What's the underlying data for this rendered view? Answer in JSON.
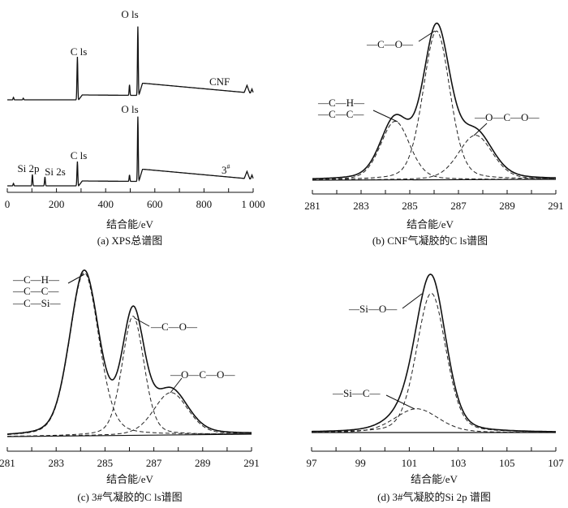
{
  "chart_data": [
    {
      "id": "a",
      "type": "line",
      "caption": "(a) XPS总谱图",
      "xlabel": "结合能/eV",
      "ylabel": "",
      "xlim": [
        0,
        1000
      ],
      "xticks": [
        0,
        200,
        400,
        600,
        800,
        1000
      ],
      "xtick_labels": [
        "0",
        "200",
        "400",
        "600",
        "800",
        "1 000"
      ],
      "series": [
        {
          "name": "CNF",
          "peaks": [
            {
              "label": "",
              "position": 25,
              "height": 3
            },
            {
              "label": "",
              "position": 65,
              "height": 2
            },
            {
              "label": "C ls",
              "position": 285,
              "height": 53
            },
            {
              "label": "",
              "position": 497,
              "height": 13
            },
            {
              "label": "O ls",
              "position": 531,
              "height": 85
            }
          ]
        },
        {
          "name": "3#",
          "peaks": [
            {
              "label": "",
              "position": 25,
              "height": 3
            },
            {
              "label": "Si 2p",
              "position": 102,
              "height": 14
            },
            {
              "label": "Si 2s",
              "position": 153,
              "height": 11
            },
            {
              "label": "C ls",
              "position": 285,
              "height": 30
            },
            {
              "label": "",
              "position": 497,
              "height": 8
            },
            {
              "label": "O ls",
              "position": 531,
              "height": 80
            }
          ]
        }
      ],
      "annotations": {
        "cnf": "CNF",
        "sample3": "3",
        "sample3_sup": "#",
        "o1s_top": "O ls",
        "c1s_top": "C ls",
        "o1s_bottom": "O ls",
        "c1s_bottom": "C ls",
        "si2p": "Si 2p",
        "si2s": "Si 2s"
      }
    },
    {
      "id": "b",
      "type": "line",
      "caption": "(b) CNF气凝胶的C ls谱图",
      "xlabel": "结合能/eV",
      "xlim": [
        281,
        291
      ],
      "xticks": [
        281,
        283,
        285,
        287,
        289,
        291
      ],
      "components": [
        {
          "name": "—C—H— / —C—C—",
          "center": 284.4,
          "height": 37,
          "sigma": 0.6
        },
        {
          "name": "—C—O—",
          "center": 286.1,
          "height": 94,
          "sigma": 0.55
        },
        {
          "name": "—O—C—O—",
          "center": 287.7,
          "height": 28,
          "sigma": 0.7
        }
      ],
      "annotations": {
        "ch": "—C—H—",
        "cc": "—C—C—",
        "co": "—C—O—",
        "oco": "—O—C—O—"
      }
    },
    {
      "id": "c",
      "type": "line",
      "caption": "(c) 3#气凝胶的C ls谱图",
      "xlabel": "结合能/eV",
      "xlim": [
        281,
        291
      ],
      "xticks": [
        281,
        283,
        285,
        287,
        289,
        291
      ],
      "components": [
        {
          "name": "—C—H— / —C—C— / —C—Si—",
          "center": 284.15,
          "height": 100,
          "sigma": 0.6
        },
        {
          "name": "—C—O—",
          "center": 286.15,
          "height": 73,
          "sigma": 0.45
        },
        {
          "name": "—O—C—O—",
          "center": 287.7,
          "height": 26,
          "sigma": 0.7
        }
      ],
      "annotations": {
        "ch": "—C—H—",
        "cc": "—C—C—",
        "csi": "—C—Si—",
        "co": "—C—O—",
        "oco": "—O—C—O—"
      }
    },
    {
      "id": "d",
      "type": "line",
      "caption": "(d) 3#气凝胶的Si 2p 谱图",
      "xlabel": "结合能/eV",
      "xlim": [
        97,
        107
      ],
      "xticks": [
        97,
        99,
        101,
        103,
        105,
        107
      ],
      "components": [
        {
          "name": "—Si—O—",
          "center": 101.9,
          "height": 88,
          "sigma": 0.6
        },
        {
          "name": "—Si—C—",
          "center": 101.3,
          "height": 15,
          "sigma": 0.9
        }
      ],
      "annotations": {
        "sio": "—Si—O—",
        "sic": "—Si—C—"
      }
    }
  ]
}
